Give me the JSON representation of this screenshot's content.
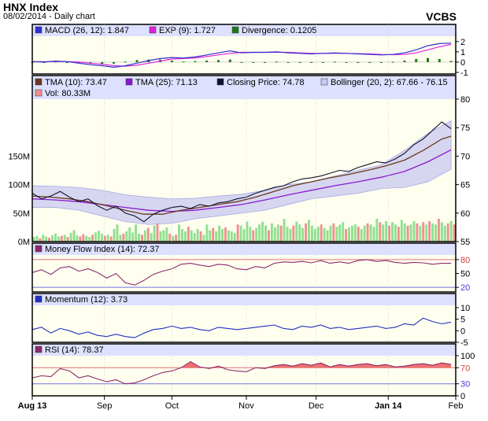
{
  "header": {
    "title": "HNX Index",
    "subtitle": "08/02/2014 - Daily chart",
    "brand": "VCBS"
  },
  "colors": {
    "macd": "#3030d0",
    "exp": "#e020e0",
    "divergence": "#1a7a1a",
    "tma10": "#6b3a1e",
    "tma25": "#8a1ad0",
    "close": "#101030",
    "bollinger_fill": "#c8c8f0",
    "vol_up": "#90e090",
    "vol_down": "#f09090",
    "mfi": "#8a2a6a",
    "momentum": "#2030c0",
    "rsi_line": "#8a2a6a",
    "rsi_fill": "#f07070",
    "ref_line_red": "#e07070",
    "ref_line_blue": "#7070e0",
    "panel_bg": "#fffff0",
    "legend_bg": "#dde0ff"
  },
  "chart_data": [
    {
      "type": "line",
      "panel": "macd",
      "legend": [
        "MACD (26, 12): 1.847",
        "EXP (9): 1.727",
        "Divergence: 0.1205"
      ],
      "ylim": [
        -1,
        2.6
      ],
      "yticks": [
        "2",
        "1",
        "0",
        "-1"
      ],
      "series": [
        {
          "name": "MACD (26, 12)",
          "x": [
            0,
            5,
            10,
            15,
            20,
            25,
            30,
            35,
            40,
            45,
            50,
            55,
            60,
            65,
            70,
            75,
            80,
            85,
            90,
            95,
            100,
            105,
            110,
            115,
            120,
            125,
            130,
            135,
            140,
            145,
            150,
            155,
            160,
            165,
            170,
            175,
            180
          ],
          "values": [
            0.05,
            0.0,
            0.1,
            0.05,
            -0.1,
            -0.25,
            -0.35,
            -0.5,
            -0.35,
            -0.1,
            0.15,
            0.35,
            0.45,
            0.4,
            0.5,
            0.7,
            0.9,
            1.1,
            0.9,
            0.95,
            0.95,
            1.0,
            0.9,
            0.85,
            0.8,
            0.85,
            0.9,
            0.85,
            0.8,
            0.75,
            0.7,
            0.75,
            0.9,
            1.2,
            1.6,
            1.8,
            1.85
          ]
        },
        {
          "name": "EXP (9)",
          "x": [
            0,
            5,
            10,
            15,
            20,
            25,
            30,
            35,
            40,
            45,
            50,
            55,
            60,
            65,
            70,
            75,
            80,
            85,
            90,
            95,
            100,
            105,
            110,
            115,
            120,
            125,
            130,
            135,
            140,
            145,
            150,
            155,
            160,
            165,
            170,
            175,
            180
          ],
          "values": [
            0.05,
            0.05,
            0.05,
            0.05,
            0.0,
            -0.1,
            -0.2,
            -0.35,
            -0.4,
            -0.3,
            -0.1,
            0.1,
            0.3,
            0.35,
            0.4,
            0.55,
            0.7,
            0.85,
            0.95,
            0.95,
            0.95,
            0.95,
            0.95,
            0.9,
            0.85,
            0.85,
            0.85,
            0.85,
            0.82,
            0.8,
            0.75,
            0.72,
            0.75,
            0.9,
            1.2,
            1.5,
            1.73
          ]
        },
        {
          "name": "Divergence",
          "x": [
            0,
            5,
            10,
            15,
            20,
            25,
            30,
            35,
            40,
            45,
            50,
            55,
            60,
            65,
            70,
            75,
            80,
            85,
            90,
            95,
            100,
            105,
            110,
            115,
            120,
            125,
            130,
            135,
            140,
            145,
            150,
            155,
            160,
            165,
            170,
            175,
            180
          ],
          "values": [
            0.0,
            -0.05,
            0.05,
            0.0,
            -0.1,
            -0.15,
            -0.15,
            -0.15,
            0.05,
            0.2,
            0.25,
            0.25,
            0.15,
            0.05,
            0.1,
            0.15,
            0.2,
            0.25,
            -0.05,
            0.0,
            0.0,
            0.05,
            -0.05,
            -0.05,
            -0.05,
            0.0,
            0.05,
            0.0,
            -0.02,
            -0.05,
            -0.05,
            0.03,
            0.15,
            0.3,
            0.4,
            0.3,
            0.12
          ]
        }
      ]
    },
    {
      "type": "line",
      "panel": "price",
      "legend": [
        "TMA (10): 73.47",
        "TMA (25): 71.13",
        "Closing Price: 74.78",
        "Bollinger (20, 2): 67.66 - 76.15",
        "Vol: 80.33M"
      ],
      "ylim": [
        55,
        80
      ],
      "yticks": [
        "80",
        "75",
        "70",
        "65",
        "60",
        "55"
      ],
      "vol_ticks": [
        "150M",
        "100M",
        "50M",
        "0M"
      ],
      "vol_ylim": [
        0,
        250
      ],
      "series": [
        {
          "name": "Closing Price",
          "x": [
            0,
            4,
            8,
            12,
            16,
            20,
            24,
            28,
            32,
            36,
            40,
            44,
            48,
            52,
            56,
            60,
            64,
            68,
            72,
            76,
            80,
            84,
            88,
            92,
            96,
            100,
            104,
            108,
            112,
            116,
            120,
            124,
            128,
            132,
            136,
            140,
            144,
            148,
            152,
            156,
            160,
            164,
            168,
            172,
            176,
            180
          ],
          "values": [
            63.5,
            62.5,
            63.0,
            63.8,
            62.8,
            62.0,
            62.5,
            61.3,
            60.5,
            61.2,
            60.0,
            59.5,
            58.5,
            59.8,
            60.5,
            61.0,
            61.2,
            60.8,
            61.5,
            61.2,
            61.8,
            62.0,
            62.5,
            62.8,
            63.5,
            64.0,
            64.5,
            64.8,
            65.5,
            66.0,
            66.2,
            66.5,
            67.0,
            67.5,
            67.3,
            68.0,
            68.5,
            69.0,
            68.8,
            69.5,
            70.5,
            72.0,
            73.0,
            74.5,
            76.0,
            74.8
          ]
        },
        {
          "name": "TMA (10)",
          "x": [
            0,
            8,
            16,
            24,
            32,
            40,
            48,
            56,
            64,
            72,
            80,
            88,
            96,
            104,
            112,
            120,
            128,
            136,
            144,
            152,
            160,
            168,
            176,
            180
          ],
          "values": [
            63.0,
            62.8,
            62.5,
            62.0,
            61.3,
            60.5,
            59.8,
            59.8,
            60.5,
            61.0,
            61.5,
            62.0,
            62.8,
            63.8,
            64.8,
            65.5,
            66.2,
            66.8,
            67.5,
            68.3,
            69.3,
            71.0,
            73.0,
            73.5
          ]
        },
        {
          "name": "TMA (25)",
          "x": [
            0,
            10,
            20,
            30,
            40,
            50,
            60,
            70,
            80,
            90,
            100,
            110,
            120,
            130,
            140,
            150,
            160,
            170,
            180
          ],
          "values": [
            62.5,
            62.3,
            62.0,
            61.5,
            61.0,
            60.5,
            60.3,
            60.5,
            61.0,
            61.5,
            62.3,
            63.2,
            64.0,
            64.8,
            65.5,
            66.3,
            67.3,
            69.0,
            71.1
          ]
        },
        {
          "name": "Bollinger upper",
          "x": [
            0,
            10,
            20,
            30,
            40,
            50,
            60,
            70,
            80,
            90,
            100,
            110,
            120,
            130,
            140,
            150,
            160,
            170,
            180
          ],
          "values": [
            64.8,
            64.7,
            64.5,
            64.0,
            63.2,
            62.8,
            62.5,
            62.6,
            63.0,
            63.3,
            64.0,
            65.0,
            65.5,
            66.5,
            67.5,
            68.5,
            71.0,
            74.0,
            76.2
          ]
        },
        {
          "name": "Bollinger lower",
          "x": [
            0,
            10,
            20,
            30,
            40,
            50,
            60,
            70,
            80,
            90,
            100,
            110,
            120,
            130,
            140,
            150,
            160,
            170,
            180
          ],
          "values": [
            61.0,
            61.0,
            60.5,
            59.5,
            58.5,
            58.0,
            58.2,
            59.0,
            59.5,
            60.0,
            60.5,
            61.5,
            62.5,
            63.0,
            63.5,
            64.3,
            64.5,
            65.5,
            67.7
          ]
        }
      ],
      "volume": [
        8,
        10,
        6,
        12,
        9,
        7,
        11,
        14,
        9,
        10,
        12,
        8,
        15,
        20,
        11,
        9,
        13,
        10,
        8,
        12,
        16,
        19,
        14,
        10,
        12,
        9,
        22,
        30,
        12,
        14,
        18,
        25,
        16,
        30,
        14,
        12,
        20,
        24,
        15,
        28,
        32,
        18,
        20,
        25,
        14,
        10,
        12,
        30,
        22,
        18,
        26,
        20,
        15,
        22,
        18,
        12,
        30,
        20,
        24,
        18,
        28,
        22,
        25,
        20,
        18,
        15,
        30,
        28,
        22,
        35,
        26,
        20,
        24,
        30,
        35,
        28,
        20,
        32,
        25,
        30,
        28,
        40,
        26,
        22,
        28,
        35,
        30,
        24,
        32,
        38,
        28,
        22,
        26,
        30,
        24,
        20,
        28,
        32,
        26,
        30,
        34,
        22,
        25,
        28,
        30,
        26,
        22,
        28,
        32,
        30,
        26,
        40,
        34,
        30,
        36,
        28,
        34,
        30,
        26,
        38,
        32,
        28,
        30,
        36,
        32,
        28,
        34,
        30,
        36,
        32,
        30,
        40,
        34,
        28,
        32,
        36,
        30
      ],
      "volume_down_index": [
        2,
        5,
        9,
        11,
        15,
        16,
        19,
        23,
        25,
        29,
        35,
        37,
        40,
        44,
        46,
        50,
        54,
        58,
        62,
        66,
        71,
        76,
        80,
        84,
        88,
        93,
        97,
        101,
        105,
        108,
        112,
        115,
        118,
        121,
        124,
        126,
        128,
        131,
        134,
        136
      ]
    },
    {
      "type": "line",
      "panel": "mfi",
      "legend": [
        "Money Flow Index (14): 72.37"
      ],
      "ylim": [
        10,
        90
      ],
      "yticks": [
        "80",
        "50",
        "20"
      ],
      "reference_lines": [
        80,
        20
      ],
      "series": [
        {
          "name": "Money Flow Index (14)",
          "x": [
            0,
            4,
            8,
            12,
            16,
            20,
            24,
            28,
            32,
            36,
            40,
            44,
            48,
            52,
            56,
            60,
            64,
            68,
            72,
            76,
            80,
            84,
            88,
            92,
            96,
            100,
            104,
            108,
            112,
            116,
            120,
            124,
            128,
            132,
            136,
            140,
            144,
            148,
            152,
            156,
            160,
            164,
            168,
            172,
            176,
            180
          ],
          "values": [
            52,
            58,
            48,
            62,
            65,
            55,
            60,
            52,
            40,
            50,
            30,
            25,
            35,
            48,
            55,
            60,
            70,
            72,
            68,
            65,
            70,
            68,
            60,
            58,
            65,
            62,
            72,
            75,
            74,
            76,
            73,
            78,
            72,
            75,
            72,
            78,
            80,
            76,
            78,
            74,
            72,
            74,
            73,
            70,
            72,
            72
          ]
        }
      ]
    },
    {
      "type": "line",
      "panel": "momentum",
      "legend": [
        "Momentum (12): 3.73"
      ],
      "ylim": [
        -5,
        11
      ],
      "yticks": [
        "10",
        "5",
        "0",
        "-5"
      ],
      "series": [
        {
          "name": "Momentum (12)",
          "x": [
            0,
            4,
            8,
            12,
            16,
            20,
            24,
            28,
            32,
            36,
            40,
            44,
            48,
            52,
            56,
            60,
            64,
            68,
            72,
            76,
            80,
            84,
            88,
            92,
            96,
            100,
            104,
            108,
            112,
            116,
            120,
            124,
            128,
            132,
            136,
            140,
            144,
            148,
            152,
            156,
            160,
            164,
            168,
            172,
            176,
            180
          ],
          "values": [
            0.5,
            1.5,
            -1.0,
            1.0,
            0.0,
            -1.5,
            -0.5,
            -2.0,
            -2.5,
            -1.5,
            -2.5,
            -3.0,
            -1.0,
            0.5,
            1.0,
            2.0,
            1.0,
            1.5,
            0.5,
            0.0,
            1.5,
            1.0,
            0.5,
            1.0,
            1.5,
            2.0,
            2.5,
            1.0,
            0.5,
            2.0,
            1.5,
            2.5,
            1.0,
            1.5,
            0.5,
            1.0,
            1.5,
            2.0,
            1.0,
            1.5,
            3.0,
            2.5,
            5.5,
            4.0,
            3.0,
            3.7
          ]
        }
      ]
    },
    {
      "type": "area",
      "panel": "rsi",
      "legend": [
        "RSI (14): 78.37"
      ],
      "ylim": [
        0,
        100
      ],
      "yticks": [
        "100",
        "70",
        "30",
        "0"
      ],
      "reference_lines": [
        70,
        30
      ],
      "series": [
        {
          "name": "RSI (14)",
          "x": [
            0,
            4,
            8,
            12,
            16,
            20,
            24,
            28,
            32,
            36,
            40,
            44,
            48,
            52,
            56,
            60,
            64,
            68,
            72,
            76,
            80,
            84,
            88,
            92,
            96,
            100,
            104,
            108,
            112,
            116,
            120,
            124,
            128,
            132,
            136,
            140,
            144,
            148,
            152,
            156,
            160,
            164,
            168,
            172,
            176,
            180
          ],
          "values": [
            45,
            50,
            48,
            68,
            62,
            45,
            50,
            42,
            35,
            40,
            30,
            32,
            40,
            50,
            58,
            62,
            70,
            85,
            72,
            68,
            74,
            65,
            62,
            60,
            70,
            68,
            75,
            78,
            74,
            80,
            76,
            82,
            72,
            78,
            74,
            78,
            80,
            75,
            78,
            72,
            74,
            78,
            80,
            76,
            82,
            78
          ]
        }
      ]
    }
  ],
  "x_axis": {
    "labels": [
      "Aug 13",
      "Sep",
      "Oct",
      "Nov",
      "Dec",
      "Jan 14",
      "Feb"
    ],
    "positions": [
      0,
      31,
      60,
      92,
      122,
      153,
      182
    ],
    "xlim": [
      0,
      182
    ]
  }
}
